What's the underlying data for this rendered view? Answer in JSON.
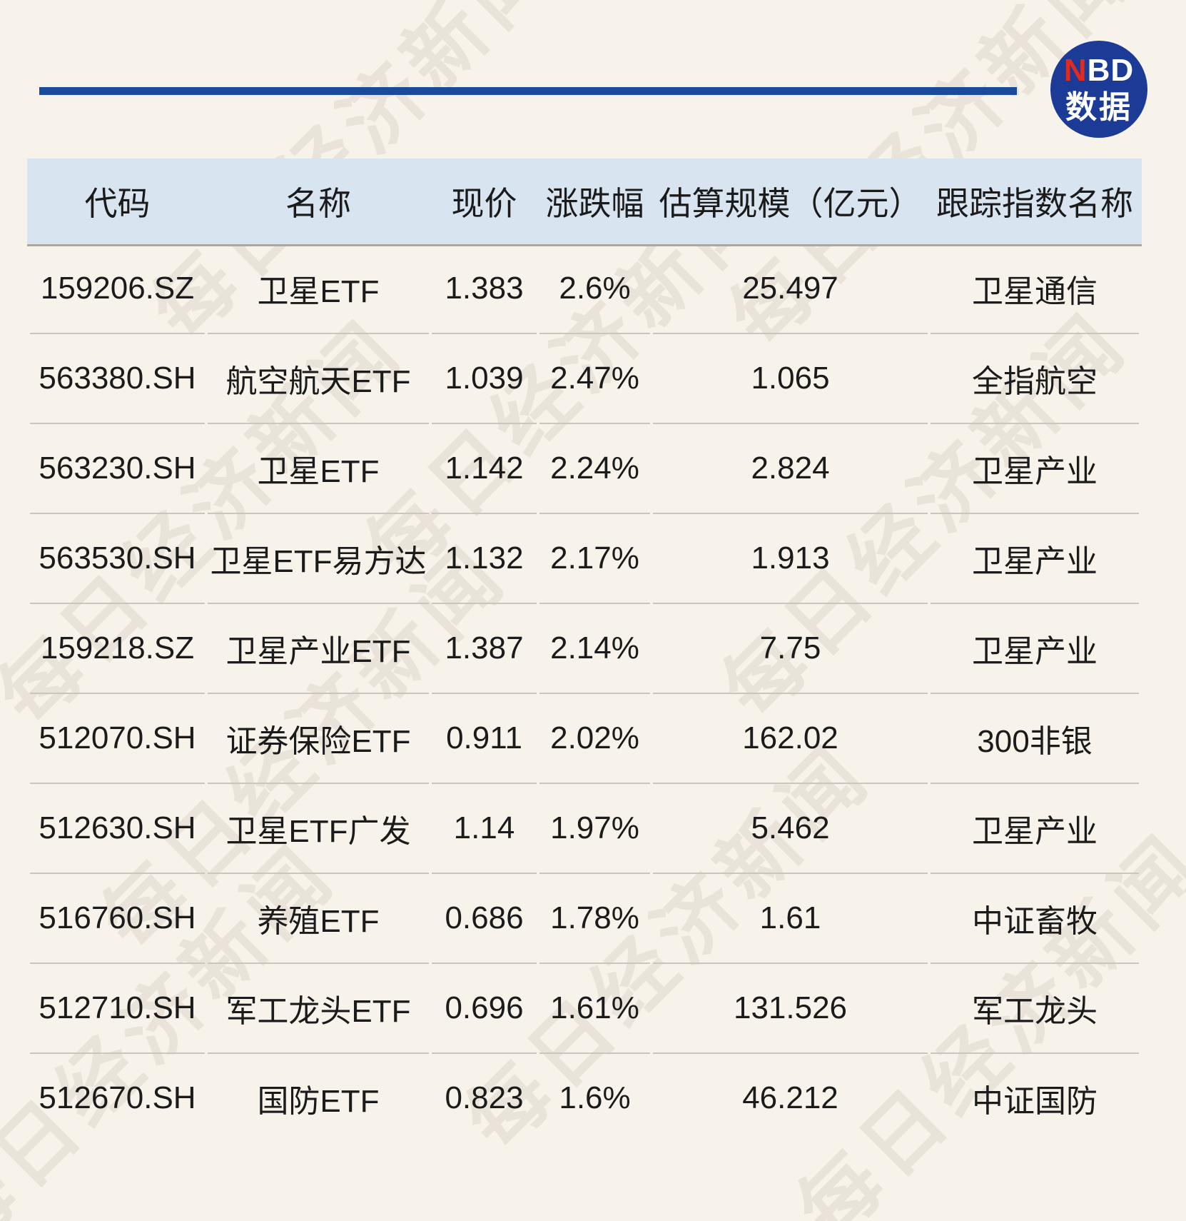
{
  "logo": {
    "n": "N",
    "bd": "BD",
    "sub": "数据"
  },
  "watermark": {
    "text": "每日经济新闻"
  },
  "colors": {
    "page_bg": "#F7F3EB",
    "header_bg": "#D8E5F1",
    "divider_blue": "#1A4A9B",
    "logo_bg": "#1B3B96",
    "logo_accent_red": "#E02B20",
    "row_line": "#C9C5BF",
    "text": "#1B1B1B"
  },
  "chart_data": {
    "type": "table",
    "title": "",
    "columns": [
      "代码",
      "名称",
      "现价",
      "涨跌幅",
      "估算规模（亿元）",
      "跟踪指数名称"
    ],
    "rows": [
      [
        "159206.SZ",
        "卫星ETF",
        "1.383",
        "2.6%",
        "25.497",
        "卫星通信"
      ],
      [
        "563380.SH",
        "航空航天ETF",
        "1.039",
        "2.47%",
        "1.065",
        "全指航空"
      ],
      [
        "563230.SH",
        "卫星ETF",
        "1.142",
        "2.24%",
        "2.824",
        "卫星产业"
      ],
      [
        "563530.SH",
        "卫星ETF易方达",
        "1.132",
        "2.17%",
        "1.913",
        "卫星产业"
      ],
      [
        "159218.SZ",
        "卫星产业ETF",
        "1.387",
        "2.14%",
        "7.75",
        "卫星产业"
      ],
      [
        "512070.SH",
        "证券保险ETF",
        "0.911",
        "2.02%",
        "162.02",
        "300非银"
      ],
      [
        "512630.SH",
        "卫星ETF广发",
        "1.14",
        "1.97%",
        "5.462",
        "卫星产业"
      ],
      [
        "516760.SH",
        "养殖ETF",
        "0.686",
        "1.78%",
        "1.61",
        "中证畜牧"
      ],
      [
        "512710.SH",
        "军工龙头ETF",
        "0.696",
        "1.61%",
        "131.526",
        "军工龙头"
      ],
      [
        "512670.SH",
        "国防ETF",
        "0.823",
        "1.6%",
        "46.212",
        "中证国防"
      ]
    ]
  }
}
